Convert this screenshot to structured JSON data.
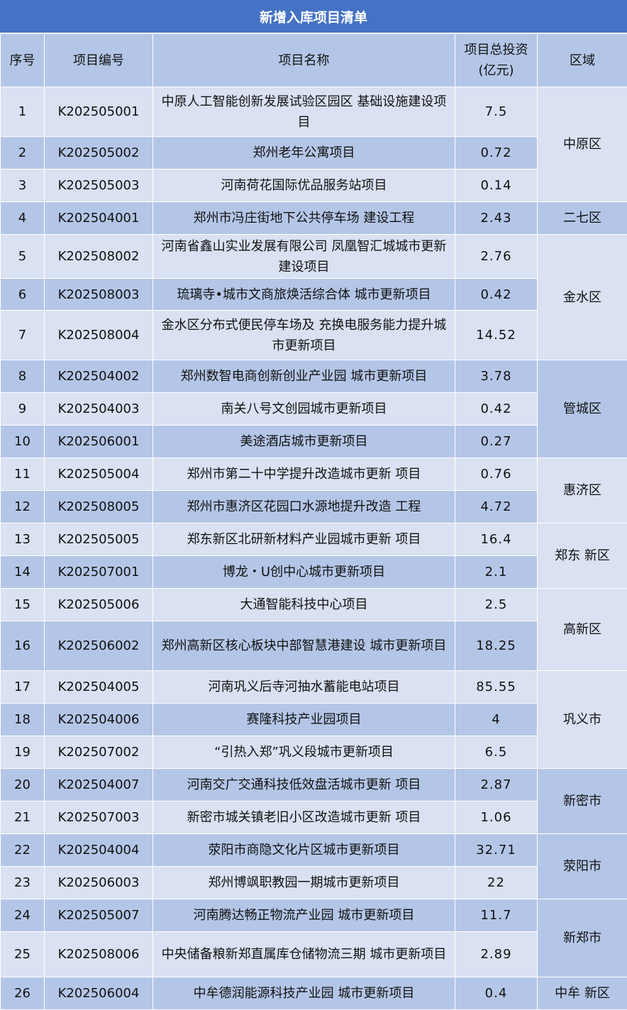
{
  "title": "新增入库项目清单",
  "headers": {
    "seq": "序号",
    "code": "项目编号",
    "name": "项目名称",
    "invest_line1": "项目总投资",
    "invest_line2": "(亿元)",
    "region": "区域"
  },
  "colors": {
    "title_bg": "#4472C4",
    "row_light": "#D9E1F2",
    "row_dark": "#B4C6E7"
  },
  "rows": [
    {
      "seq": "1",
      "code": "K202505001",
      "name": "中原人工智能创新发展试验区园区 基础设施建设项目",
      "invest": "7.5"
    },
    {
      "seq": "2",
      "code": "K202505002",
      "name": "郑州老年公寓项目",
      "invest": "0.72"
    },
    {
      "seq": "3",
      "code": "K202505003",
      "name": "河南荷花国际优品服务站项目",
      "invest": "0.14"
    },
    {
      "seq": "4",
      "code": "K202504001",
      "name": "郑州市冯庄街地下公共停车场 建设工程",
      "invest": "2.43"
    },
    {
      "seq": "5",
      "code": "K202508002",
      "name": "河南省鑫山实业发展有限公司 凤凰智汇城城市更新建设项目",
      "invest": "2.76"
    },
    {
      "seq": "6",
      "code": "K202508003",
      "name": "琉璃寺•城市文商旅焕活综合体 城市更新项目",
      "invest": "0.42"
    },
    {
      "seq": "7",
      "code": "K202508004",
      "name": "金水区分布式便民停车场及 充换电服务能力提升城市更新项目",
      "invest": "14.52"
    },
    {
      "seq": "8",
      "code": "K202504002",
      "name": "郑州数智电商创新创业产业园 城市更新项目",
      "invest": "3.78"
    },
    {
      "seq": "9",
      "code": "K202504003",
      "name": "南关八号文创园城市更新项目",
      "invest": "0.42"
    },
    {
      "seq": "10",
      "code": "K202506001",
      "name": "美途酒店城市更新项目",
      "invest": "0.27"
    },
    {
      "seq": "11",
      "code": "K202505004",
      "name": "郑州市第二十中学提升改造城市更新 项目",
      "invest": "0.76"
    },
    {
      "seq": "12",
      "code": "K202508005",
      "name": "郑州市惠济区花园口水源地提升改造 工程",
      "invest": "4.72"
    },
    {
      "seq": "13",
      "code": "K202505005",
      "name": "郑东新区北研新材料产业园城市更新 项目",
      "invest": "16.4"
    },
    {
      "seq": "14",
      "code": "K202507001",
      "name": "博龙・U创中心城市更新项目",
      "invest": "2.1"
    },
    {
      "seq": "15",
      "code": "K202505006",
      "name": "大通智能科技中心项目",
      "invest": "2.5"
    },
    {
      "seq": "16",
      "code": "K202506002",
      "name": "郑州高新区核心板块中部智慧港建设 城市更新项目",
      "invest": "18.25"
    },
    {
      "seq": "17",
      "code": "K202504005",
      "name": "河南巩义后寺河抽水蓄能电站项目",
      "invest": "85.55"
    },
    {
      "seq": "18",
      "code": "K202504006",
      "name": "赛隆科技产业园项目",
      "invest": "4"
    },
    {
      "seq": "19",
      "code": "K202507002",
      "name": "“引热入郑”巩义段城市更新项目",
      "invest": "6.5"
    },
    {
      "seq": "20",
      "code": "K202504007",
      "name": "河南交广交通科技低效盘活城市更新 项目",
      "invest": "2.87"
    },
    {
      "seq": "21",
      "code": "K202507003",
      "name": "新密市城关镇老旧小区改造城市更新 项目",
      "invest": "1.06"
    },
    {
      "seq": "22",
      "code": "K202504004",
      "name": "荥阳市商隐文化片区城市更新项目",
      "invest": "32.71"
    },
    {
      "seq": "23",
      "code": "K202506003",
      "name": "郑州博飒职教园一期城市更新项目",
      "invest": "22"
    },
    {
      "seq": "24",
      "code": "K202505007",
      "name": "河南腾达畅正物流产业园 城市更新项目",
      "invest": "11.7"
    },
    {
      "seq": "25",
      "code": "K202508006",
      "name": "中央储备粮新郑直属库仓储物流三期 城市更新项目",
      "invest": "2.89"
    },
    {
      "seq": "26",
      "code": "K202506004",
      "name": "中牟德润能源科技产业园 城市更新项目",
      "invest": "0.4"
    }
  ],
  "regions": [
    {
      "name": "中原区",
      "span": 3,
      "shade": "light"
    },
    {
      "name": "二七区",
      "span": 1,
      "shade": "dark"
    },
    {
      "name": "金水区",
      "span": 3,
      "shade": "light"
    },
    {
      "name": "管城区",
      "span": 3,
      "shade": "dark"
    },
    {
      "name": "惠济区",
      "span": 2,
      "shade": "light"
    },
    {
      "name": "郑东 新区",
      "span": 2,
      "shade": "light"
    },
    {
      "name": "高新区",
      "span": 2,
      "shade": "light"
    },
    {
      "name": "巩义市",
      "span": 3,
      "shade": "light"
    },
    {
      "name": "新密市",
      "span": 2,
      "shade": "dark"
    },
    {
      "name": "荥阳市",
      "span": 2,
      "shade": "dark"
    },
    {
      "name": "新郑市",
      "span": 2,
      "shade": "dark"
    },
    {
      "name": "中牟 新区",
      "span": 1,
      "shade": "dark"
    }
  ]
}
